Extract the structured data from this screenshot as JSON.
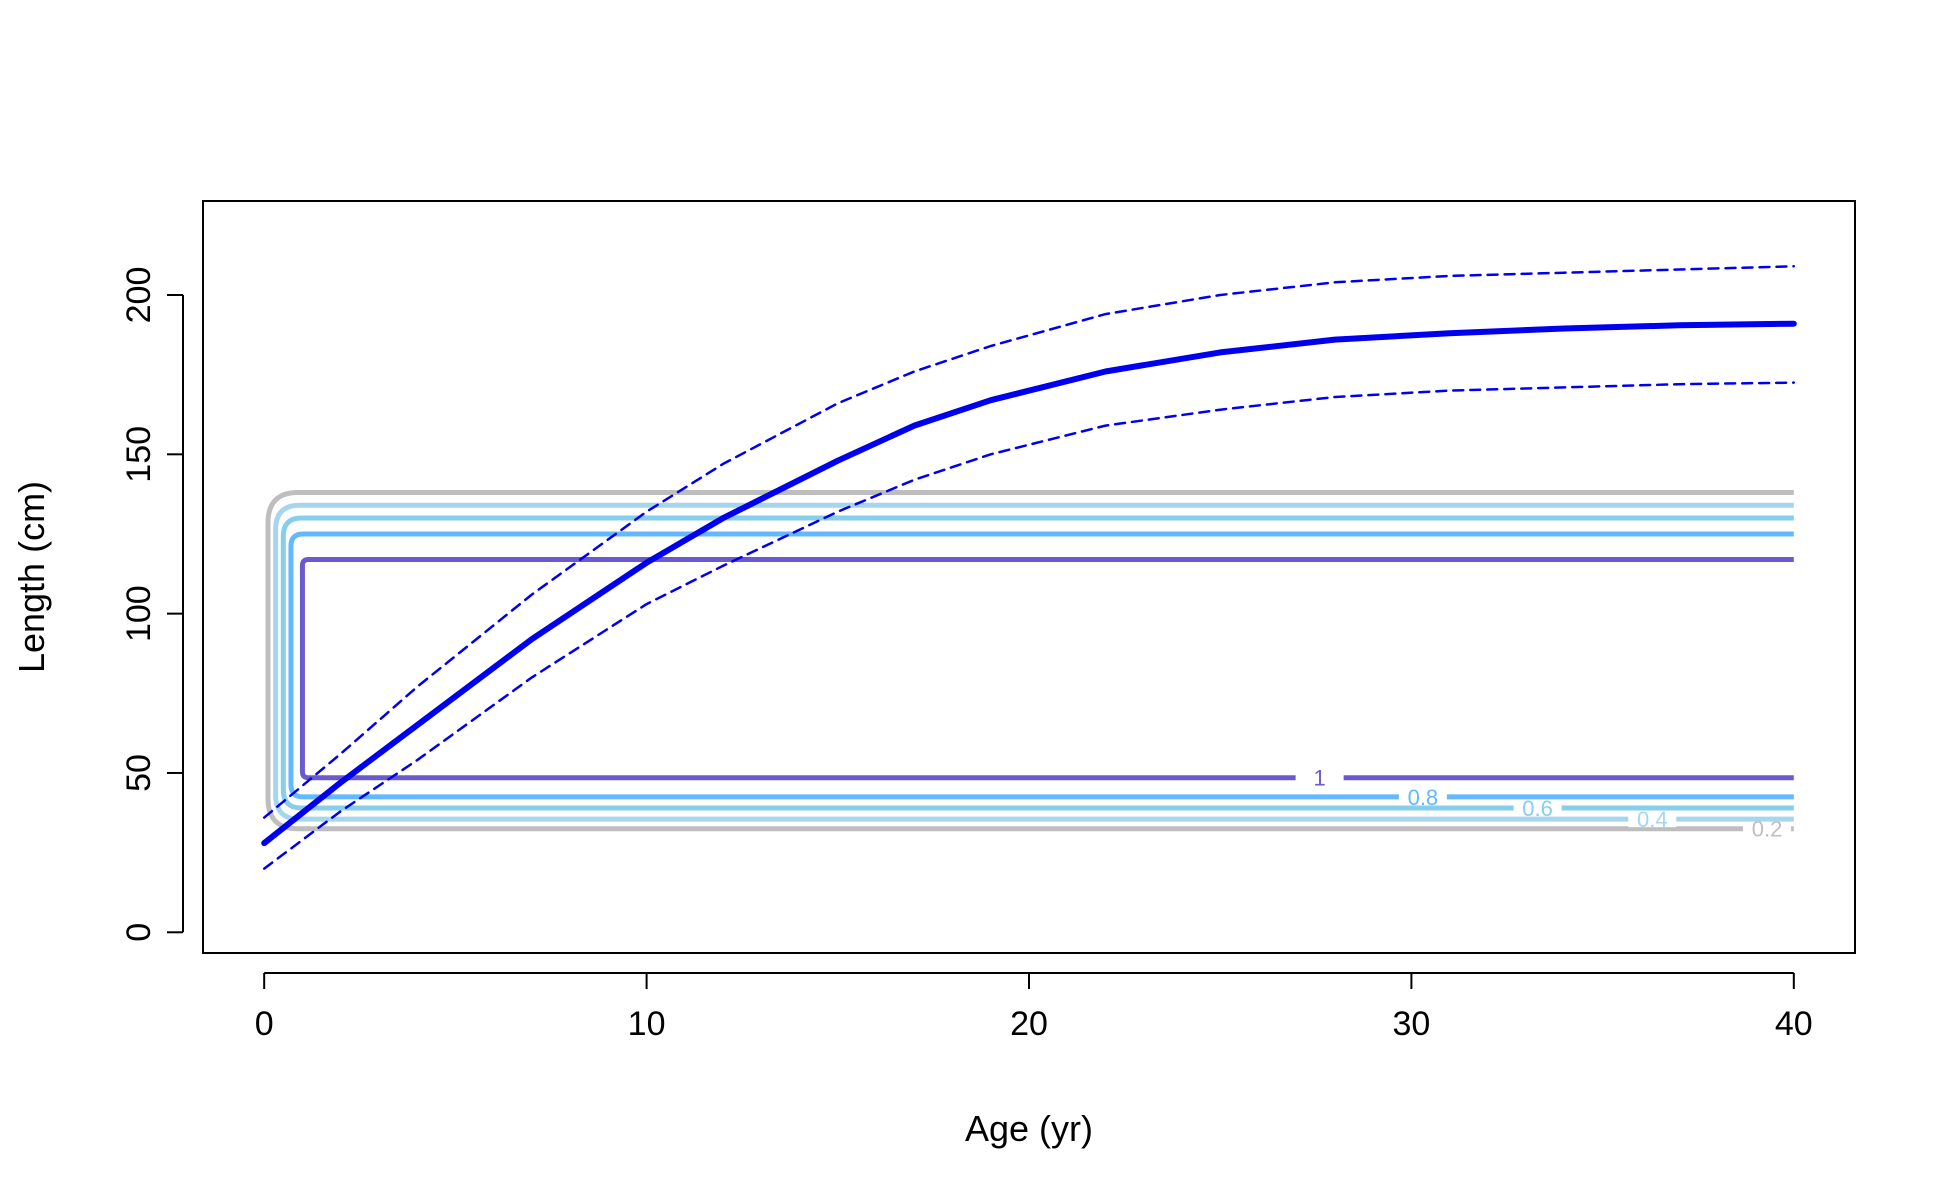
{
  "chart_data": {
    "type": "line",
    "title": "",
    "xlabel": "Age (yr)",
    "ylabel": "Length (cm)",
    "xlim": [
      -1.6,
      41.6
    ],
    "ylim": [
      -6.5,
      229.5
    ],
    "xticks": [
      "0",
      "10",
      "20",
      "30",
      "40"
    ],
    "yticks": [
      "0",
      "50",
      "100",
      "150",
      "200"
    ],
    "grid": false,
    "legend": "none",
    "series": [
      {
        "line": "solid-thick",
        "color": "#0000ee",
        "x": [
          0,
          2,
          4,
          7,
          10,
          12,
          15,
          17,
          19,
          22,
          25,
          28,
          31,
          34,
          37,
          40
        ],
        "y": [
          28,
          47,
          65,
          92,
          116,
          130,
          148,
          159,
          167,
          176,
          182,
          186,
          188,
          189.5,
          190.5,
          191
        ]
      },
      {
        "line": "dashed",
        "color": "#0000ee",
        "x": [
          0,
          2,
          4,
          7,
          10,
          12,
          15,
          17,
          19,
          22,
          25,
          28,
          31,
          34,
          37,
          40
        ],
        "y": [
          36,
          56,
          77,
          106,
          132,
          147,
          166,
          176,
          184,
          194,
          200,
          204,
          206,
          207,
          208,
          209
        ]
      },
      {
        "line": "dashed",
        "color": "#0000ee",
        "x": [
          0,
          2,
          4,
          7,
          10,
          12,
          15,
          17,
          19,
          22,
          25,
          28,
          31,
          34,
          37,
          40
        ],
        "y": [
          20,
          38,
          54,
          80,
          103,
          115,
          132,
          142,
          150,
          159,
          164,
          168,
          170,
          171,
          172,
          172.5
        ]
      }
    ],
    "contours": [
      {
        "level": "0.2",
        "color": "#bebebe",
        "x_left": 0.1,
        "x_right": 40,
        "y_bottom": 32.5,
        "y_top": 138,
        "label_x": 39.3
      },
      {
        "level": "0.4",
        "color": "#a6d6ee",
        "x_left": 0.3,
        "x_right": 40,
        "y_bottom": 35.5,
        "y_top": 134,
        "label_x": 36.3
      },
      {
        "level": "0.6",
        "color": "#87ceeb",
        "x_left": 0.5,
        "x_right": 40,
        "y_bottom": 39,
        "y_top": 130,
        "label_x": 33.3
      },
      {
        "level": "0.8",
        "color": "#63b8ff",
        "x_left": 0.7,
        "x_right": 40,
        "y_bottom": 42.5,
        "y_top": 125,
        "label_x": 30.3
      },
      {
        "level": "1",
        "color": "#6a5acd",
        "x_left": 1,
        "x_right": 40,
        "y_bottom": 48.5,
        "y_top": 117,
        "label_x": 27.6
      }
    ]
  }
}
